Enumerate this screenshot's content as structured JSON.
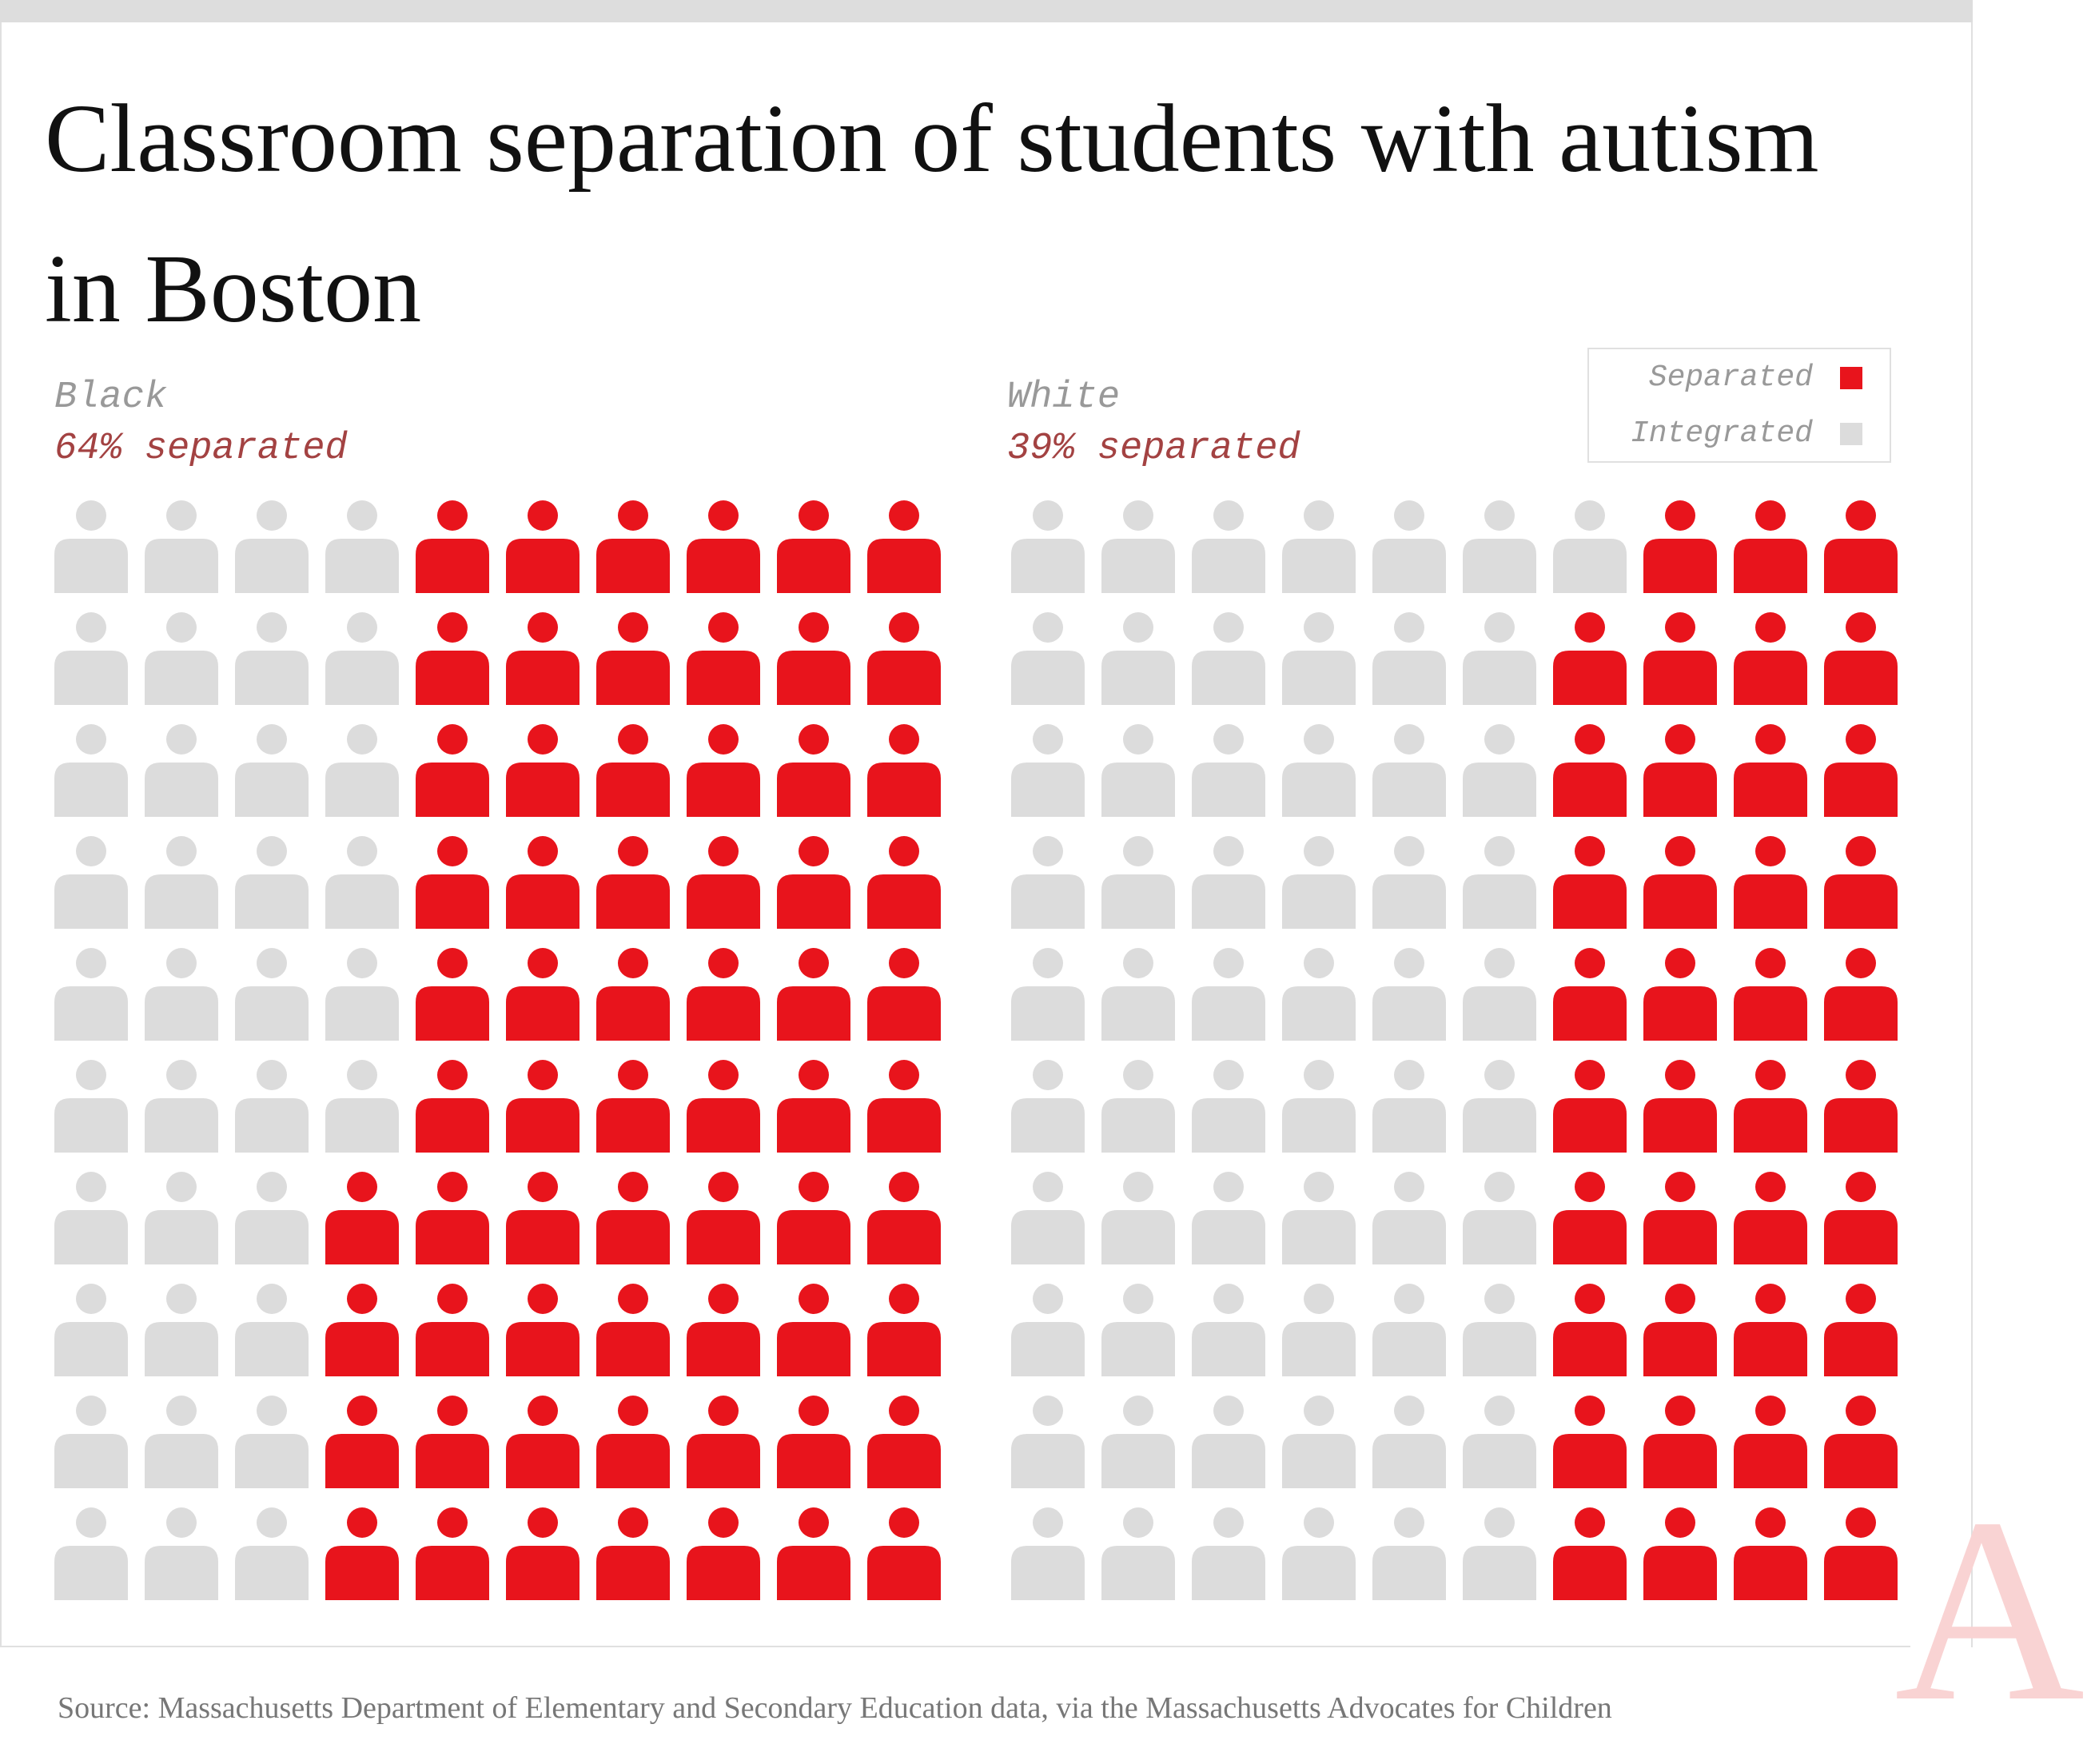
{
  "title": "Classroom separation of students with autism in Boston",
  "source": "Source: Massachusetts Department of Elementary and Secondary Education data, via the Massachusetts Advocates for Children",
  "logo_letter": "A",
  "colors": {
    "separated": "#e8141c",
    "integrated": "#dcdcdc"
  },
  "legend": {
    "separated_label": "Separated",
    "integrated_label": "Integrated"
  },
  "chart_data": {
    "type": "waffle",
    "unit": "percent of students",
    "grid": {
      "rows": 10,
      "columns": 10
    },
    "series": [
      {
        "name": "Black",
        "label": "64% separated",
        "separated": 64,
        "integrated": 36
      },
      {
        "name": "White",
        "label": "39% separated",
        "separated": 39,
        "integrated": 61
      }
    ]
  }
}
